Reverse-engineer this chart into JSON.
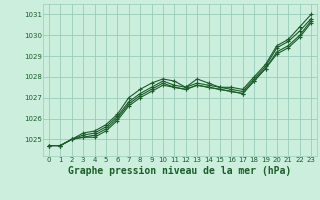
{
  "background_color": "#cceedd",
  "grid_color": "#99ccbb",
  "line_color": "#1a5c2a",
  "marker_color": "#1a5c2a",
  "title": "Graphe pression niveau de la mer (hPa)",
  "title_fontsize": 7.0,
  "title_color": "#1a5c2a",
  "tick_color": "#1a5c2a",
  "xlim": [
    -0.5,
    23.5
  ],
  "ylim": [
    1024.2,
    1031.5
  ],
  "yticks": [
    1025,
    1026,
    1027,
    1028,
    1029,
    1030,
    1031
  ],
  "xticks": [
    0,
    1,
    2,
    3,
    4,
    5,
    6,
    7,
    8,
    9,
    10,
    11,
    12,
    13,
    14,
    15,
    16,
    17,
    18,
    19,
    20,
    21,
    22,
    23
  ],
  "series": [
    {
      "x": [
        0,
        1,
        2,
        3,
        4,
        5,
        6,
        7,
        8,
        9,
        10,
        11,
        12,
        13,
        14,
        15,
        16,
        17,
        18,
        19,
        20,
        21,
        22,
        23
      ],
      "y": [
        1024.7,
        1024.7,
        1025.0,
        1025.3,
        1025.4,
        1025.7,
        1026.2,
        1027.0,
        1027.4,
        1027.7,
        1027.9,
        1027.8,
        1027.5,
        1027.9,
        1027.7,
        1027.5,
        1027.5,
        1027.4,
        1028.0,
        1028.6,
        1029.5,
        1029.8,
        1030.4,
        1031.0
      ]
    },
    {
      "x": [
        0,
        1,
        2,
        3,
        4,
        5,
        6,
        7,
        8,
        9,
        10,
        11,
        12,
        13,
        14,
        15,
        16,
        17,
        18,
        19,
        20,
        21,
        22,
        23
      ],
      "y": [
        1024.7,
        1024.7,
        1025.0,
        1025.2,
        1025.3,
        1025.6,
        1026.1,
        1026.8,
        1027.2,
        1027.5,
        1027.8,
        1027.6,
        1027.5,
        1027.7,
        1027.6,
        1027.5,
        1027.4,
        1027.3,
        1027.9,
        1028.5,
        1029.4,
        1029.7,
        1030.2,
        1030.8
      ]
    },
    {
      "x": [
        0,
        1,
        2,
        3,
        4,
        5,
        6,
        7,
        8,
        9,
        10,
        11,
        12,
        13,
        14,
        15,
        16,
        17,
        18,
        19,
        20,
        21,
        22,
        23
      ],
      "y": [
        1024.7,
        1024.7,
        1025.0,
        1025.1,
        1025.2,
        1025.5,
        1026.0,
        1026.7,
        1027.1,
        1027.4,
        1027.7,
        1027.5,
        1027.4,
        1027.6,
        1027.5,
        1027.4,
        1027.3,
        1027.2,
        1027.8,
        1028.4,
        1029.2,
        1029.5,
        1030.0,
        1030.7
      ]
    },
    {
      "x": [
        0,
        1,
        2,
        3,
        4,
        5,
        6,
        7,
        8,
        9,
        10,
        11,
        12,
        13,
        14,
        15,
        16,
        17,
        18,
        19,
        20,
        21,
        22,
        23
      ],
      "y": [
        1024.7,
        1024.7,
        1025.0,
        1025.1,
        1025.1,
        1025.4,
        1025.9,
        1026.6,
        1027.0,
        1027.3,
        1027.6,
        1027.5,
        1027.4,
        1027.6,
        1027.5,
        1027.4,
        1027.3,
        1027.2,
        1027.8,
        1028.4,
        1029.1,
        1029.4,
        1029.9,
        1030.6
      ]
    }
  ]
}
